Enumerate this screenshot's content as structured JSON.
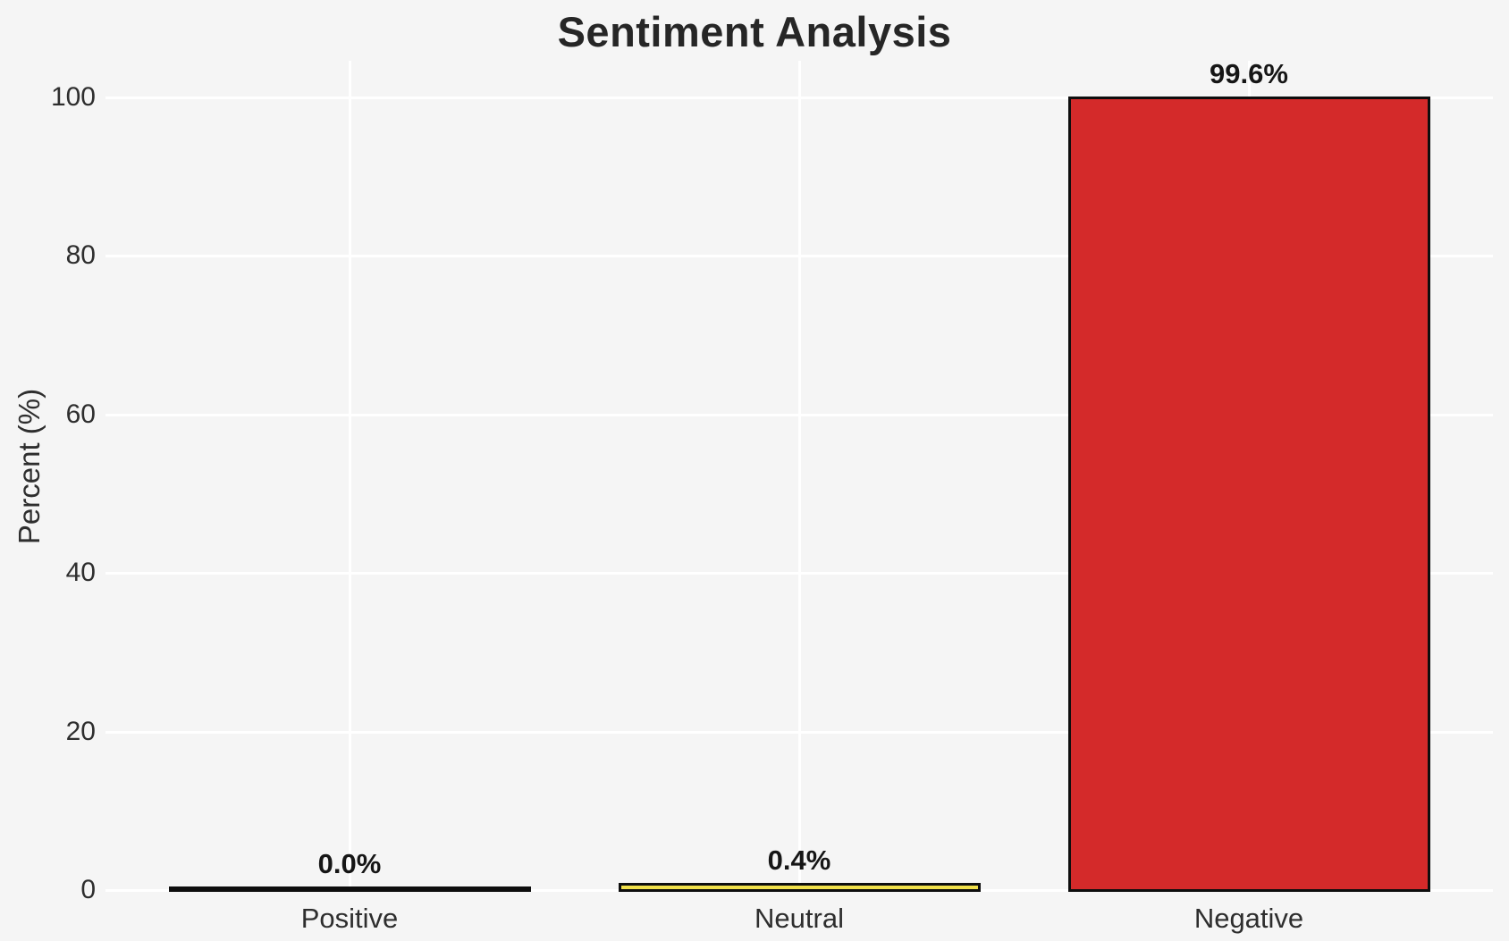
{
  "chart_data": {
    "type": "bar",
    "title": "Sentiment Analysis",
    "ylabel": "Percent (%)",
    "xlabel": "",
    "categories": [
      "Positive",
      "Neutral",
      "Negative"
    ],
    "values": [
      0.0,
      0.4,
      99.6
    ],
    "value_labels": [
      "0.0%",
      "0.4%",
      "99.6%"
    ],
    "yticks": [
      0,
      20,
      40,
      60,
      80,
      100
    ],
    "ytick_labels": [
      "0",
      "20",
      "40",
      "60",
      "80",
      "100"
    ],
    "ylim": [
      0,
      104.6
    ],
    "grid": true,
    "legend_position": "none",
    "colors": {
      "background": "#f5f5f5",
      "gridline": "#ffffff",
      "bar_fills": [
        "#3a9e4f",
        "#f0e04a",
        "#d42a2a"
      ],
      "bar_edge": "#0e0e0e",
      "title_text": "#262626",
      "tick_text": "#2e2e2e",
      "value_label_text": "#161616"
    }
  }
}
